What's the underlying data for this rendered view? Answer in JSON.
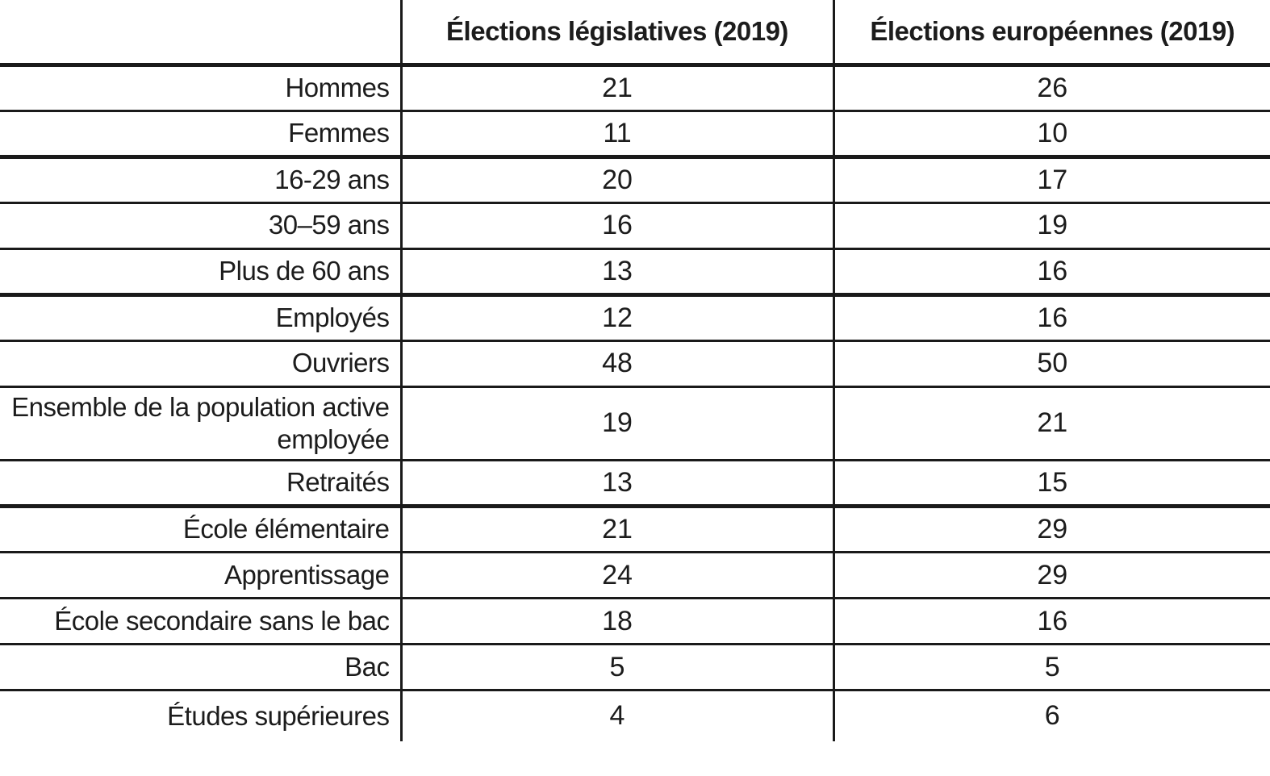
{
  "colors": {
    "background": "#ffffff",
    "text": "#1c1c1c",
    "line": "#1a1a1a"
  },
  "table": {
    "header_corner": "",
    "header_legislatives": "Élections législatives (2019)",
    "header_europeennes": "Élections européennes (2019)",
    "rows": [
      {
        "label": "Hommes",
        "legislatives": "21",
        "europeennes": "26",
        "separator": "thin"
      },
      {
        "label": "Femmes",
        "legislatives": "11",
        "europeennes": "10",
        "separator": "thick"
      },
      {
        "label": "16-29 ans",
        "legislatives": "20",
        "europeennes": "17",
        "separator": "thin"
      },
      {
        "label": "30–59 ans",
        "legislatives": "16",
        "europeennes": "19",
        "separator": "thin"
      },
      {
        "label": "Plus de 60 ans",
        "legislatives": "13",
        "europeennes": "16",
        "separator": "thick"
      },
      {
        "label": "Employés",
        "legislatives": "12",
        "europeennes": "16",
        "separator": "thin"
      },
      {
        "label": "Ouvriers",
        "legislatives": "48",
        "europeennes": "50",
        "separator": "thin"
      },
      {
        "label": "Ensemble de la population active employée",
        "legislatives": "19",
        "europeennes": "21",
        "separator": "thin"
      },
      {
        "label": "Retraités",
        "legislatives": "13",
        "europeennes": "15",
        "separator": "thick"
      },
      {
        "label": "École élémentaire",
        "legislatives": "21",
        "europeennes": "29",
        "separator": "thin"
      },
      {
        "label": "Apprentissage",
        "legislatives": "24",
        "europeennes": "29",
        "separator": "thin"
      },
      {
        "label": "École secondaire sans le bac",
        "legislatives": "18",
        "europeennes": "16",
        "separator": "thin"
      },
      {
        "label": "Bac",
        "legislatives": "5",
        "europeennes": "5",
        "separator": "thin"
      },
      {
        "label": "Études supérieures",
        "legislatives": "4",
        "europeennes": "6",
        "separator": "none"
      }
    ]
  },
  "chart_data": {
    "type": "table",
    "title": "",
    "columns": [
      "",
      "Élections législatives (2019)",
      "Élections européennes (2019)"
    ],
    "categories": [
      "Hommes",
      "Femmes",
      "16-29 ans",
      "30–59 ans",
      "Plus de 60 ans",
      "Employés",
      "Ouvriers",
      "Ensemble de la population active employée",
      "Retraités",
      "École élémentaire",
      "Apprentissage",
      "École secondaire sans le bac",
      "Bac",
      "Études supérieures"
    ],
    "series": [
      {
        "name": "Élections législatives (2019)",
        "values": [
          21,
          11,
          20,
          16,
          13,
          12,
          48,
          19,
          13,
          21,
          24,
          18,
          5,
          4
        ]
      },
      {
        "name": "Élections européennes (2019)",
        "values": [
          26,
          10,
          17,
          19,
          16,
          16,
          50,
          21,
          15,
          29,
          29,
          16,
          5,
          6
        ]
      }
    ],
    "group_separators_after": [
      "Femmes",
      "Plus de 60 ans",
      "Retraités"
    ],
    "layout": {
      "label_column_align": "right",
      "value_columns_align": "center",
      "outer_border": false
    }
  }
}
